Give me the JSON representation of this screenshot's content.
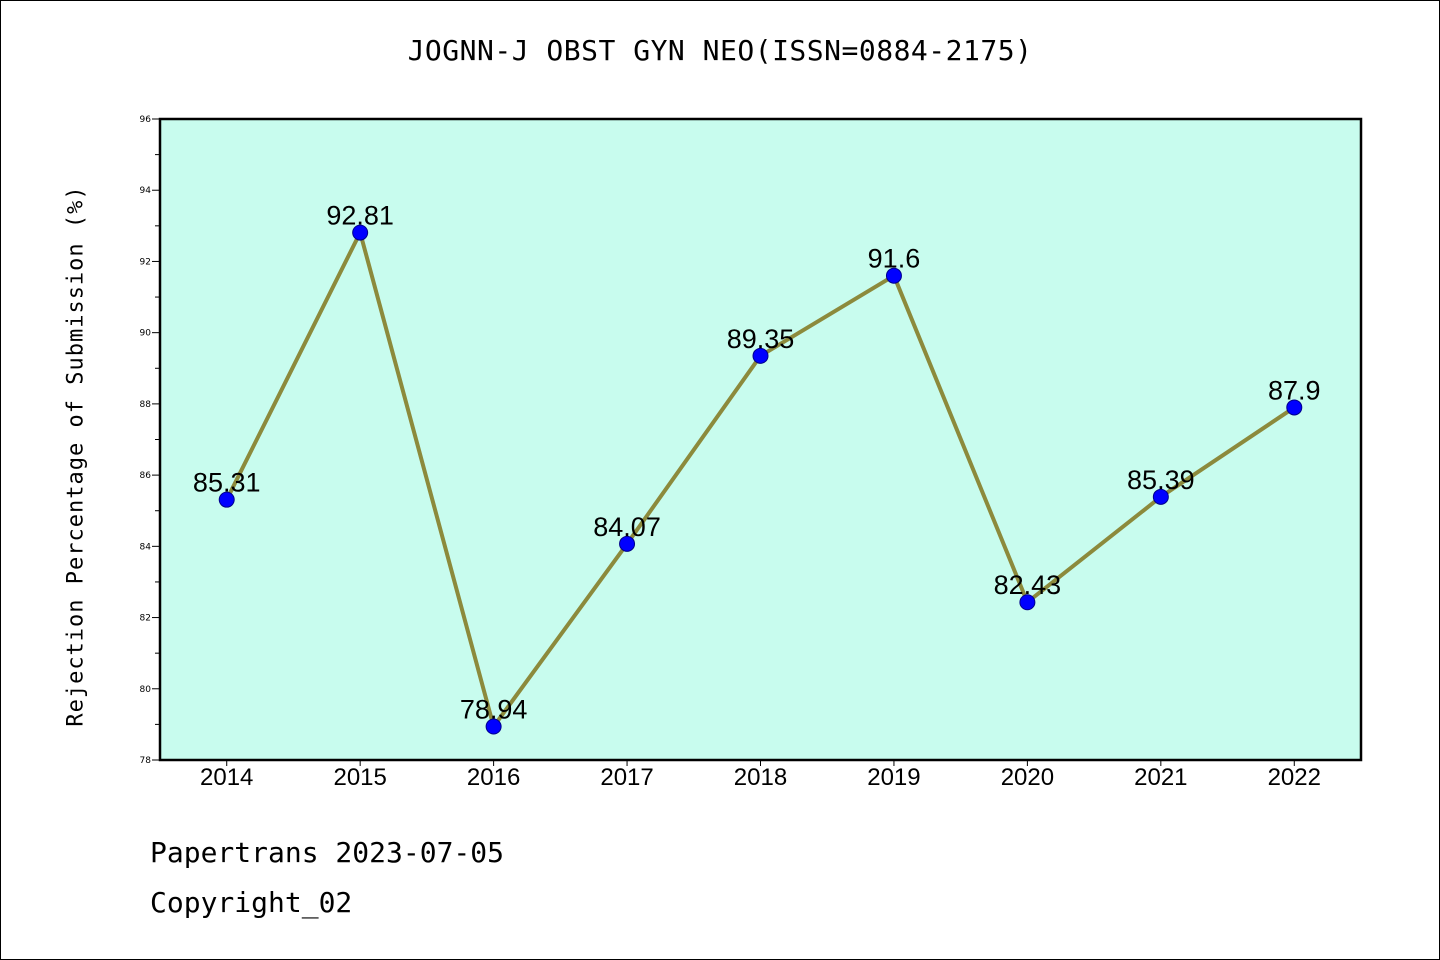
{
  "title": "JOGNN-J OBST GYN NEO(ISSN=0884-2175)",
  "footer": {
    "line1": "Papertrans 2023-07-05",
    "line2": "Copyright_02"
  },
  "colors": {
    "plot_background": "#c8fcee",
    "line": "#8c8a3c",
    "marker": "#0000ff",
    "marker_edge": "#00008b"
  },
  "chart_data": {
    "type": "line",
    "title": "JOGNN-J OBST GYN NEO(ISSN=0884-2175)",
    "xlabel": "",
    "ylabel": "Rejection Percentage of Submission (%)",
    "categories": [
      "2014",
      "2015",
      "2016",
      "2017",
      "2018",
      "2019",
      "2020",
      "2021",
      "2022"
    ],
    "values": [
      85.31,
      92.81,
      78.94,
      84.07,
      89.35,
      91.6,
      82.43,
      85.39,
      87.9
    ],
    "data_labels": [
      "85.31",
      "92.81",
      "78.94",
      "84.07",
      "89.35",
      "91.6",
      "82.43",
      "85.39",
      "87.9"
    ],
    "ylim": [
      78,
      96
    ],
    "y_major_ticks": [
      78,
      80,
      82,
      84,
      86,
      88,
      90,
      92,
      94,
      96
    ],
    "grid": false,
    "legend": "none"
  }
}
